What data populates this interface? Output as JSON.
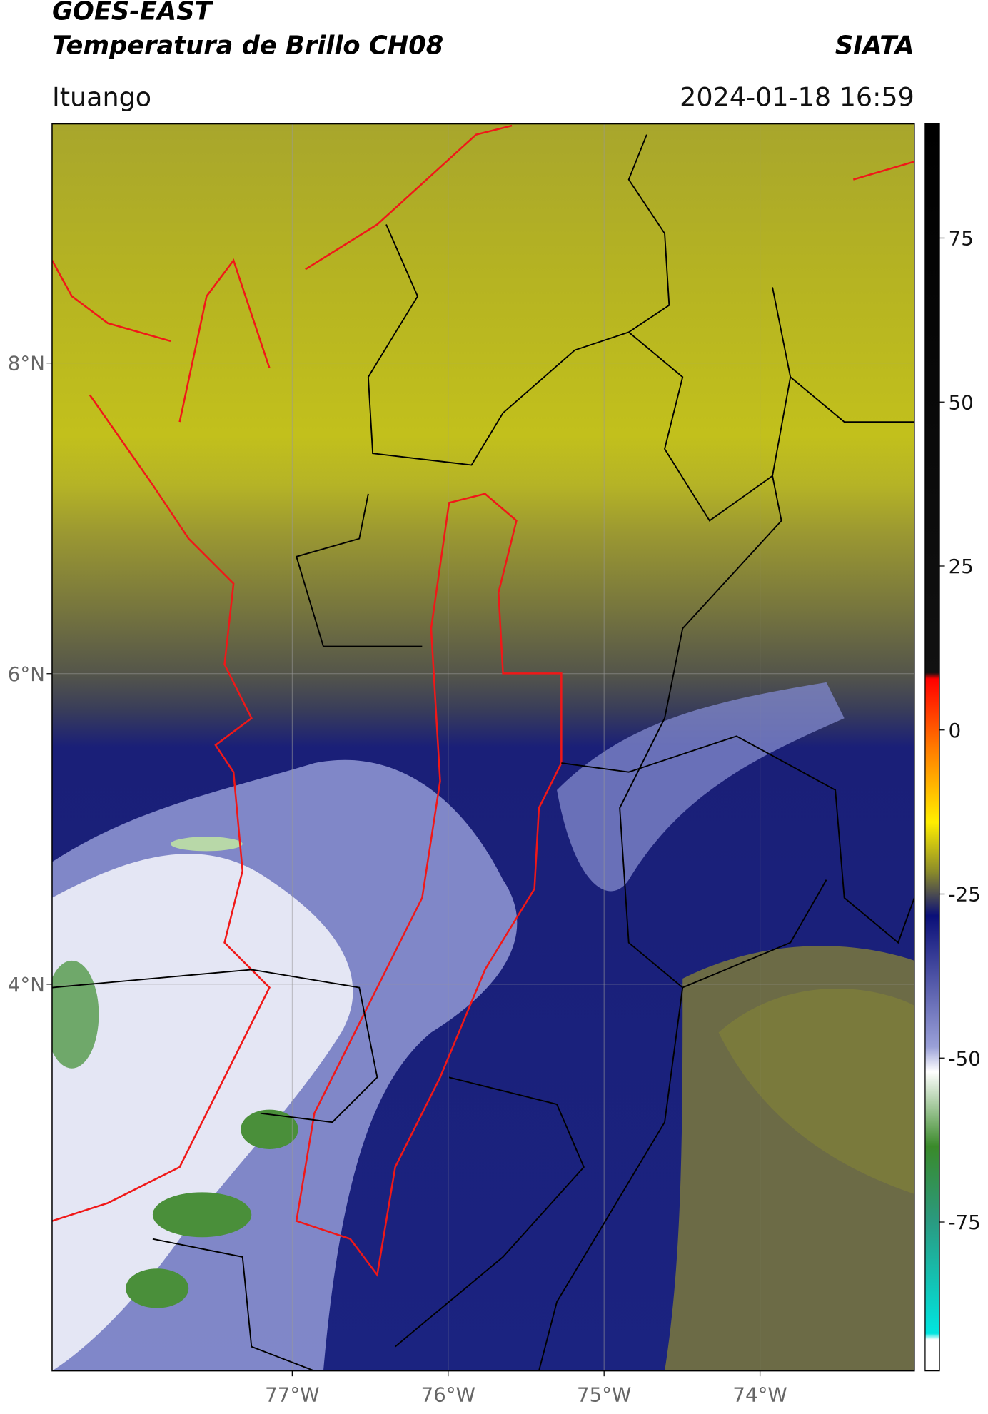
{
  "header": {
    "title": "GOES-EAST",
    "subtitle": "Temperatura de Brillo CH08",
    "brand": "SIATA",
    "location": "Ituango",
    "datetime": "2024-01-18 16:59"
  },
  "map": {
    "xlim": [
      -78.54,
      -73.01
    ],
    "ylim": [
      1.51,
      9.54
    ],
    "xticks": [
      {
        "value": -77,
        "label": "77°W"
      },
      {
        "value": -76,
        "label": "76°W"
      },
      {
        "value": -75,
        "label": "75°W"
      },
      {
        "value": -74,
        "label": "74°W"
      }
    ],
    "yticks": [
      {
        "value": 4,
        "label": "4°N"
      },
      {
        "value": 6,
        "label": "6°N"
      },
      {
        "value": 8,
        "label": "8°N"
      }
    ],
    "grid": true
  },
  "colorbar": {
    "lim": [
      -97.7,
      92.4
    ],
    "ticks": [
      -75,
      -50,
      -25,
      0,
      25,
      50,
      75
    ]
  }
}
